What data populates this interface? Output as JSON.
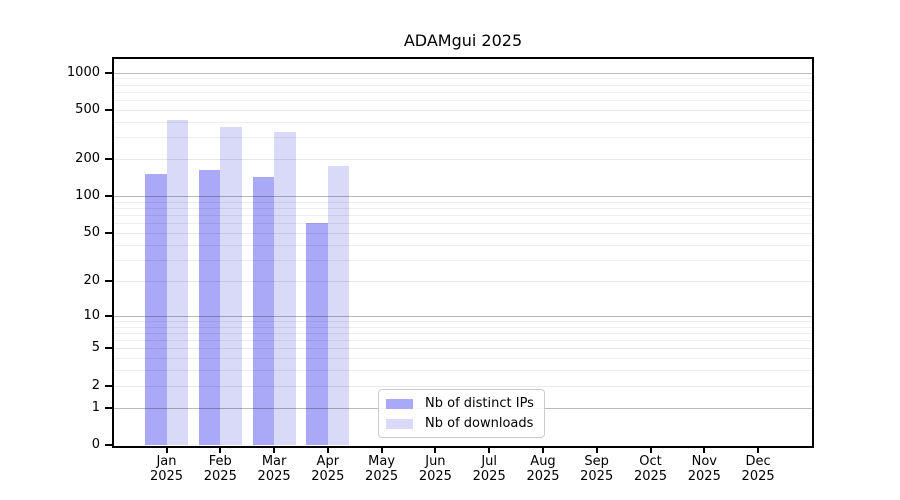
{
  "chart_data": {
    "type": "bar",
    "title": "ADAMgui 2025",
    "xlabel": "",
    "ylabel": "",
    "year": "2025",
    "months": [
      "Jan",
      "Feb",
      "Mar",
      "Apr",
      "May",
      "Jun",
      "Jul",
      "Aug",
      "Sep",
      "Oct",
      "Nov",
      "Dec"
    ],
    "series": [
      {
        "key": "distinct-ips",
        "name": "Nb of distinct IPs",
        "color": "#a9a9f8",
        "values": [
          152,
          163,
          144,
          60,
          null,
          null,
          null,
          null,
          null,
          null,
          null,
          null
        ]
      },
      {
        "key": "downloads",
        "name": "Nb of downloads",
        "color": "#d9d9f8",
        "values": [
          414,
          362,
          330,
          177,
          null,
          null,
          null,
          null,
          null,
          null,
          null,
          null
        ]
      }
    ],
    "y_axis": {
      "scale": "log1p",
      "ticks": [
        0,
        1,
        2,
        5,
        10,
        20,
        50,
        100,
        200,
        500,
        1000
      ],
      "major_gridline_values": [
        1,
        10,
        100,
        1000
      ],
      "ylim": [
        0,
        1300
      ]
    },
    "grid": true,
    "legend_position": "inside-bottom-center"
  },
  "colors": {
    "axis": "#000000",
    "grid_major": "#b9b9b9",
    "grid_minor": "#ececec",
    "legend_border": "#cccccc",
    "background": "#ffffff"
  }
}
